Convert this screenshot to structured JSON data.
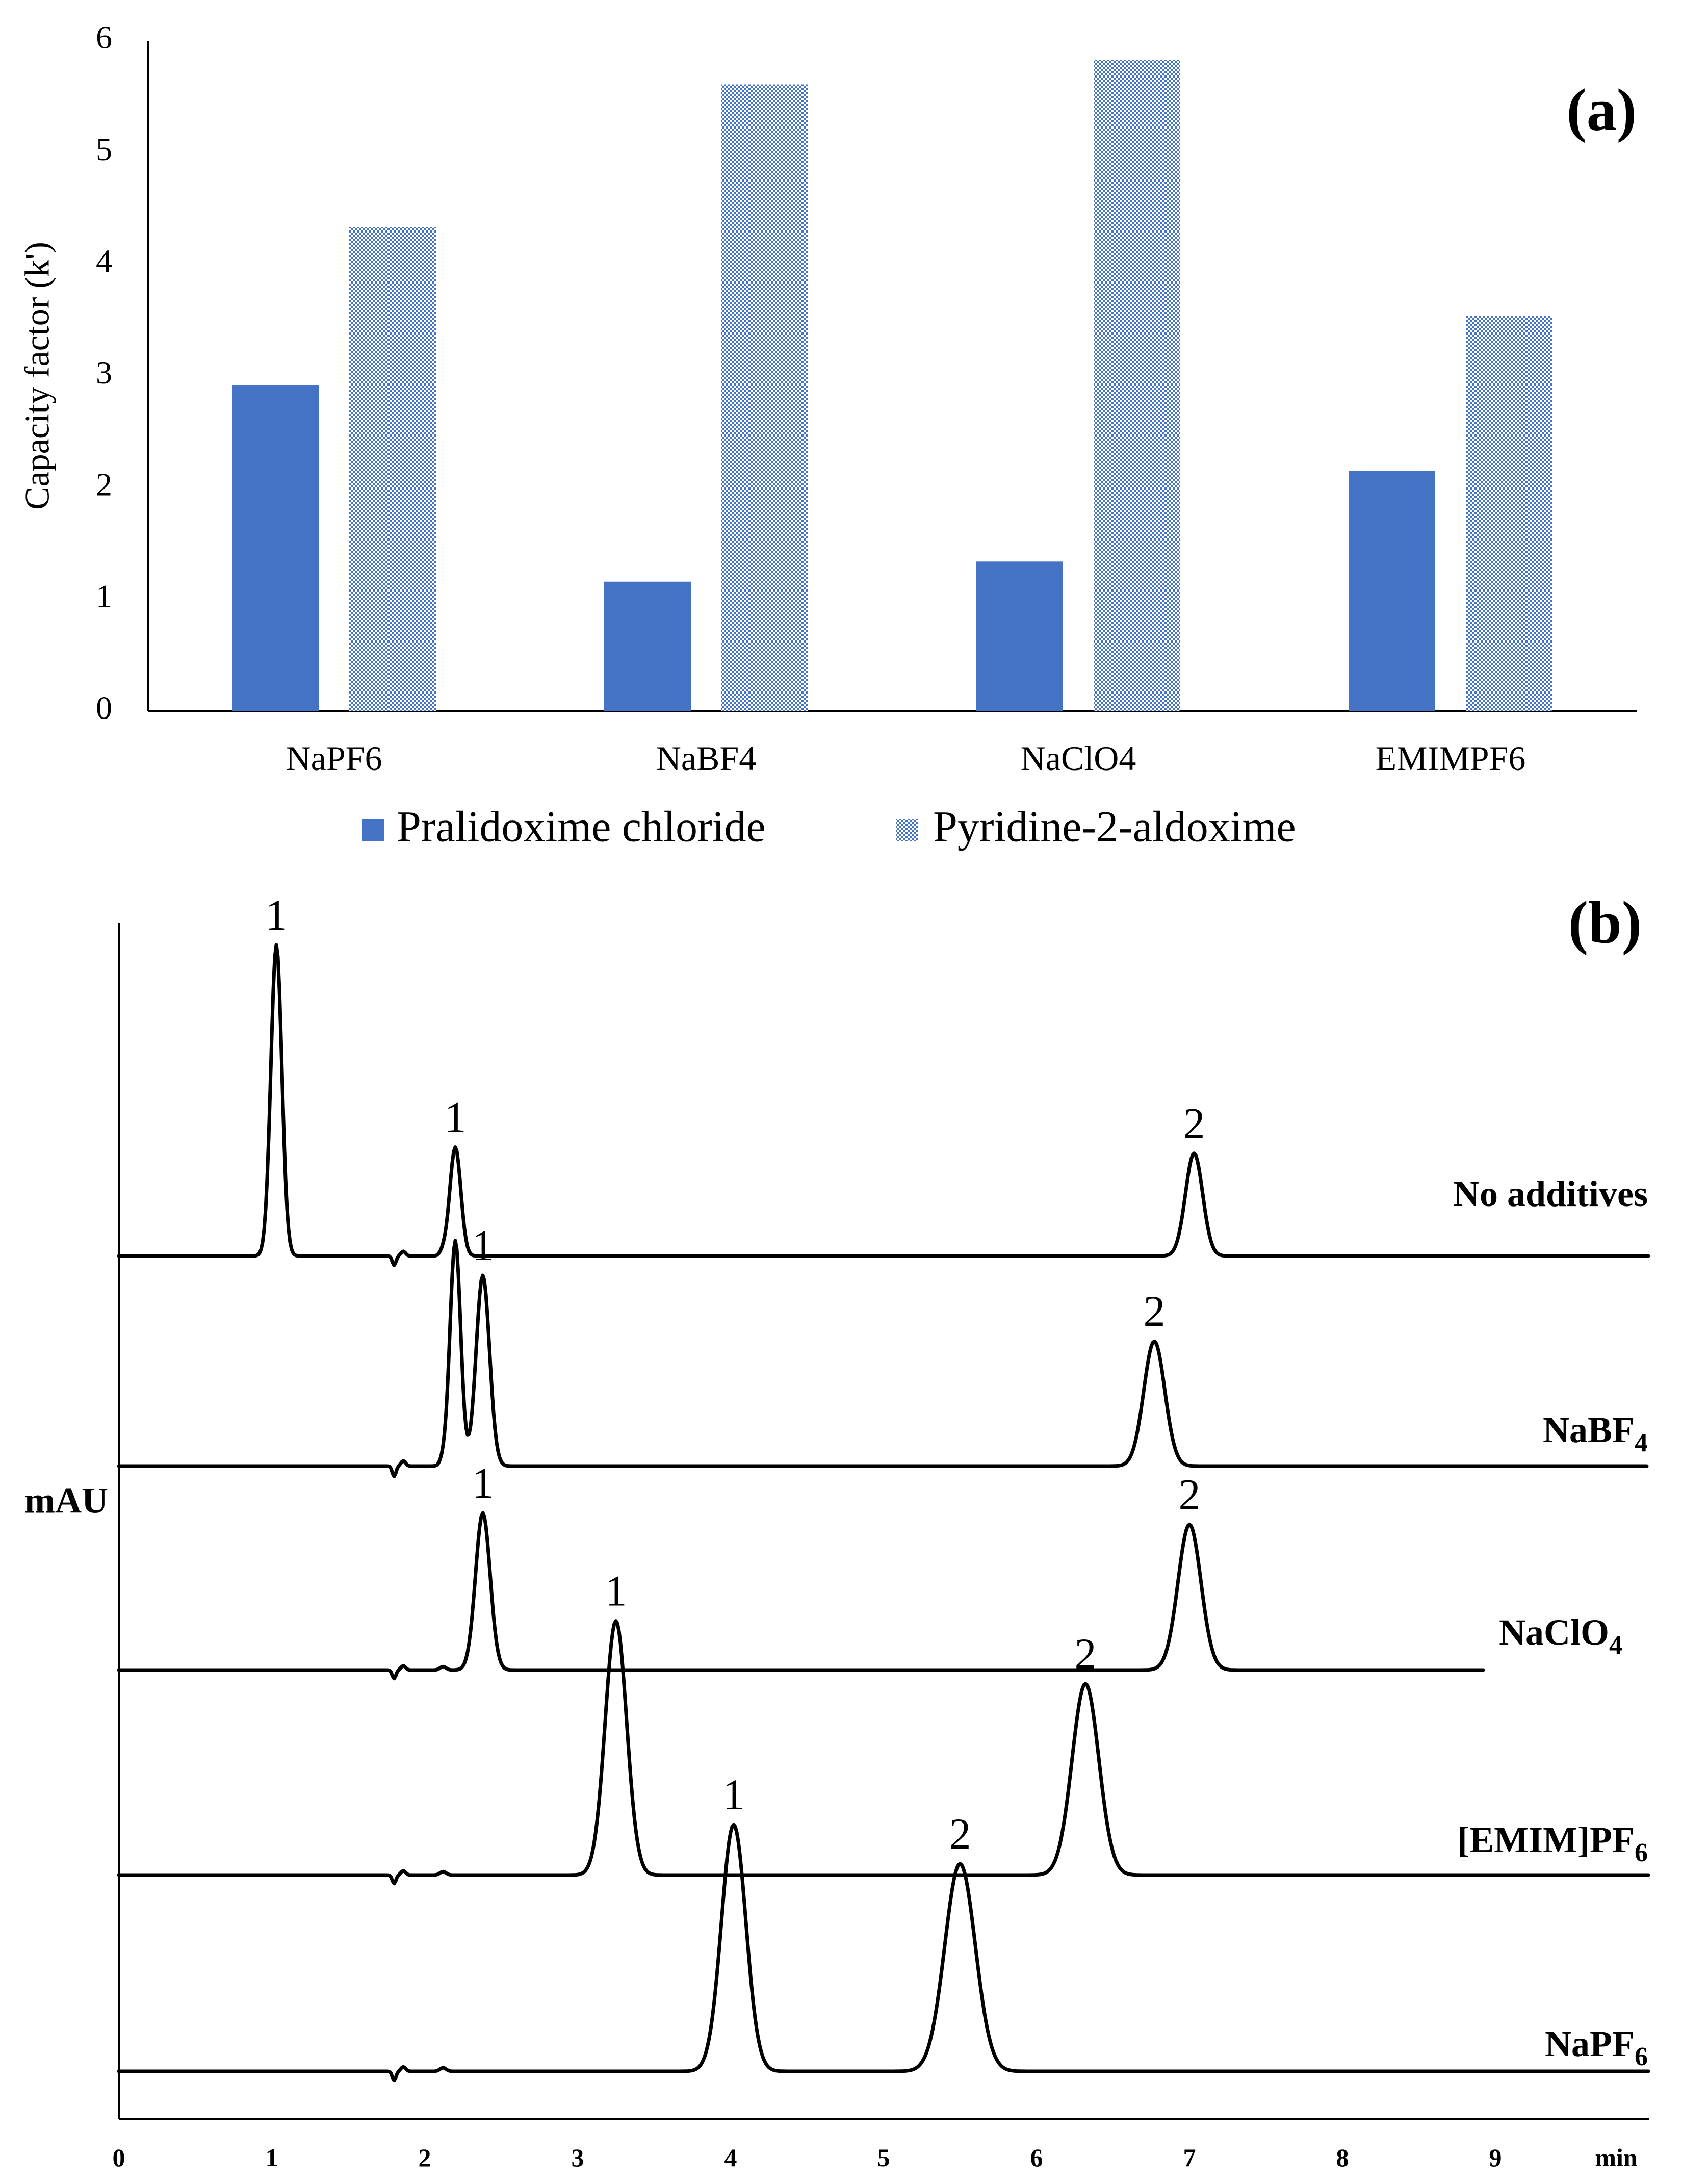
{
  "colors": {
    "series1": "#4472C4",
    "series2": "#4472C4",
    "axis": "#000000",
    "trace": "#000000"
  },
  "chart_data": [
    {
      "type": "bar",
      "panel_label": "(a)",
      "title": "",
      "ylabel": "Capacity factor (k')",
      "xlabel": "",
      "ylim": [
        0,
        6
      ],
      "yticks": [
        "0",
        "1",
        "2",
        "3",
        "4",
        "5",
        "6"
      ],
      "categories": [
        "NaPF6",
        "NaBF4",
        "NaClO4",
        "EMIMPF6"
      ],
      "series": [
        {
          "name": "Pralidoxime chloride",
          "pattern": "solid",
          "values": [
            2.92,
            1.16,
            1.34,
            2.15
          ]
        },
        {
          "name": "Pyridine-2-aldoxime",
          "pattern": "checker",
          "values": [
            4.33,
            5.61,
            5.83,
            3.54
          ]
        }
      ],
      "legend_position": "bottom"
    },
    {
      "type": "line",
      "panel_label": "(b)",
      "ylabel": "mAU",
      "xlabel": "min",
      "xlim": [
        0,
        10
      ],
      "xticks": [
        "0",
        "1",
        "2",
        "3",
        "4",
        "5",
        "6",
        "7",
        "8",
        "9"
      ],
      "traces": [
        {
          "name": "No additives",
          "peaks": [
            {
              "label": "1",
              "time": 1.03,
              "height": 1.0
            },
            {
              "label": "1",
              "time": 2.2,
              "height": 0.35
            },
            {
              "label": "2",
              "time": 7.03,
              "height": 0.33
            }
          ]
        },
        {
          "name": "NaBF4",
          "peaks": [
            {
              "label": "1",
              "time": 2.38,
              "height": 0.55
            },
            {
              "label": "2",
              "time": 6.77,
              "height": 0.36
            }
          ]
        },
        {
          "name": "NaClO4",
          "peaks": [
            {
              "label": "1",
              "time": 2.38,
              "height": 0.55
            },
            {
              "label": "2",
              "time": 7.0,
              "height": 0.51
            }
          ]
        },
        {
          "name": "[EMIM]PF6",
          "peaks": [
            {
              "label": "1",
              "time": 3.25,
              "height": 0.89
            },
            {
              "label": "2",
              "time": 6.32,
              "height": 0.67
            }
          ]
        },
        {
          "name": "NaPF6",
          "peaks": [
            {
              "label": "1",
              "time": 4.02,
              "height": 0.82
            },
            {
              "label": "2",
              "time": 5.5,
              "height": 0.69
            }
          ]
        }
      ]
    }
  ]
}
